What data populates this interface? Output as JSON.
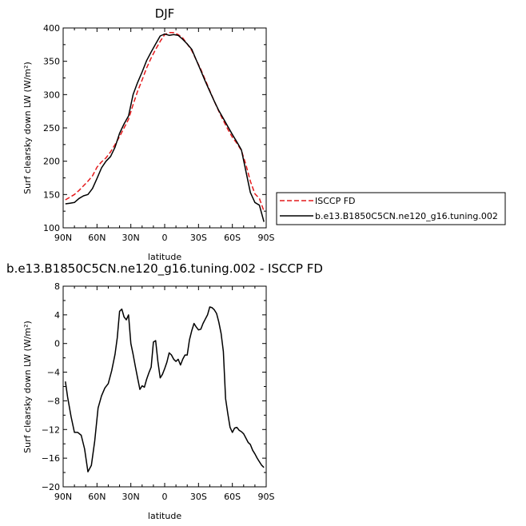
{
  "chart_data": [
    {
      "type": "line",
      "title": "DJF",
      "xlabel": "latitude",
      "ylabel": "Surf clearsky down LW (W/m²)",
      "xlim": [
        90,
        -90
      ],
      "ylim": [
        100,
        400
      ],
      "xticks": [
        {
          "value": 90,
          "label": "90N"
        },
        {
          "value": 60,
          "label": "60N"
        },
        {
          "value": 30,
          "label": "30N"
        },
        {
          "value": 0,
          "label": "0"
        },
        {
          "value": -30,
          "label": "30S"
        },
        {
          "value": -60,
          "label": "60S"
        },
        {
          "value": -90,
          "label": "90S"
        }
      ],
      "yticks": [
        100,
        150,
        200,
        250,
        300,
        350,
        400
      ],
      "legend": {
        "placement": "right",
        "entries": [
          "ISCCP FD",
          "b.e13.B1850C5CN.ne120_g16.tuning.002"
        ]
      },
      "series": [
        {
          "name": "ISCCP FD",
          "color": "#e41a1c",
          "dash": true,
          "x": [
            88,
            84,
            80,
            76,
            72,
            68,
            64,
            60,
            56,
            52,
            48,
            44,
            40,
            36,
            32,
            28,
            24,
            20,
            16,
            12,
            8,
            4,
            0,
            -4,
            -8,
            -12,
            -16,
            -20,
            -24,
            -28,
            -32,
            -36,
            -40,
            -44,
            -48,
            -52,
            -56,
            -60,
            -64,
            -68,
            -72,
            -76,
            -80,
            -84,
            -88
          ],
          "y": [
            142,
            146,
            150,
            156,
            163,
            170,
            178,
            191,
            199,
            205,
            214,
            225,
            237,
            250,
            263,
            285,
            305,
            322,
            340,
            355,
            368,
            380,
            390,
            393,
            393,
            390,
            385,
            376,
            366,
            352,
            338,
            322,
            306,
            290,
            275,
            261,
            248,
            236,
            227,
            216,
            195,
            170,
            151,
            144,
            125
          ]
        },
        {
          "name": "b.e13.B1850C5CN.ne120_g16.tuning.002",
          "color": "#000000",
          "dash": false,
          "x": [
            88,
            84,
            80,
            76,
            72,
            68,
            64,
            60,
            56,
            52,
            48,
            44,
            40,
            36,
            32,
            28,
            24,
            20,
            16,
            12,
            8,
            4,
            0,
            -4,
            -8,
            -12,
            -16,
            -20,
            -24,
            -28,
            -32,
            -36,
            -40,
            -44,
            -48,
            -52,
            -56,
            -60,
            -64,
            -68,
            -72,
            -76,
            -80,
            -84,
            -88
          ],
          "y": [
            136,
            137,
            138,
            144,
            148,
            150,
            159,
            174,
            190,
            200,
            207,
            221,
            242,
            256,
            268,
            300,
            318,
            334,
            351,
            364,
            376,
            388,
            391,
            389,
            390,
            389,
            383,
            376,
            368,
            352,
            336,
            320,
            305,
            290,
            276,
            264,
            252,
            240,
            229,
            217,
            185,
            153,
            138,
            134,
            109
          ]
        }
      ]
    },
    {
      "type": "line",
      "title": "b.e13.B1850C5CN.ne120_g16.tuning.002 - ISCCP FD",
      "xlabel": "latitude",
      "ylabel": "Surf clearsky down LW (W/m²)",
      "xlim": [
        90,
        -90
      ],
      "ylim": [
        -20,
        8
      ],
      "xticks": [
        {
          "value": 90,
          "label": "90N"
        },
        {
          "value": 60,
          "label": "60N"
        },
        {
          "value": 30,
          "label": "30N"
        },
        {
          "value": 0,
          "label": "0"
        },
        {
          "value": -30,
          "label": "30S"
        },
        {
          "value": -60,
          "label": "60S"
        },
        {
          "value": -90,
          "label": "90S"
        }
      ],
      "yticks": [
        -20,
        -16,
        -12,
        -8,
        -4,
        0,
        4,
        8
      ],
      "series": [
        {
          "name": "",
          "color": "#000000",
          "dash": false,
          "x": [
            88,
            86,
            83,
            80,
            77,
            74,
            71,
            68,
            65,
            62,
            59,
            56,
            53,
            50,
            47,
            44,
            42,
            40,
            38,
            36,
            34,
            32,
            30,
            28,
            26,
            24,
            22,
            20,
            18,
            16,
            14,
            12,
            10,
            8,
            6,
            4,
            2,
            0,
            -2,
            -4,
            -6,
            -8,
            -10,
            -12,
            -14,
            -16,
            -18,
            -20,
            -22,
            -24,
            -26,
            -28,
            -30,
            -32,
            -34,
            -36,
            -38,
            -40,
            -42,
            -44,
            -46,
            -48,
            -50,
            -52,
            -54,
            -56,
            -58,
            -60,
            -62,
            -64,
            -66,
            -68,
            -70,
            -72,
            -74,
            -76,
            -78,
            -80,
            -82,
            -84,
            -86,
            -88
          ],
          "y": [
            -5.3,
            -7.5,
            -10.2,
            -12.4,
            -12.4,
            -12.8,
            -14.7,
            -17.9,
            -17.0,
            -13.6,
            -9.0,
            -7.3,
            -6.2,
            -5.6,
            -3.8,
            -1.5,
            0.8,
            4.5,
            4.8,
            3.7,
            3.3,
            4.0,
            0.0,
            -1.5,
            -3.2,
            -4.8,
            -6.4,
            -5.9,
            -6.1,
            -5.0,
            -4.1,
            -3.3,
            0.2,
            0.4,
            -2.5,
            -4.8,
            -4.3,
            -3.5,
            -2.6,
            -1.3,
            -1.6,
            -2.2,
            -2.5,
            -2.2,
            -3.0,
            -2.2,
            -1.6,
            -1.6,
            0.5,
            1.8,
            2.8,
            2.3,
            1.9,
            2.0,
            2.8,
            3.4,
            4.0,
            5.1,
            5.0,
            4.7,
            4.2,
            3.0,
            1.4,
            -1.1,
            -7.7,
            -9.8,
            -11.7,
            -12.4,
            -11.8,
            -11.7,
            -12.1,
            -12.3,
            -12.6,
            -13.2,
            -13.8,
            -14.1,
            -14.9,
            -15.4,
            -16.0,
            -16.5,
            -17.0,
            -17.3
          ]
        }
      ]
    }
  ]
}
